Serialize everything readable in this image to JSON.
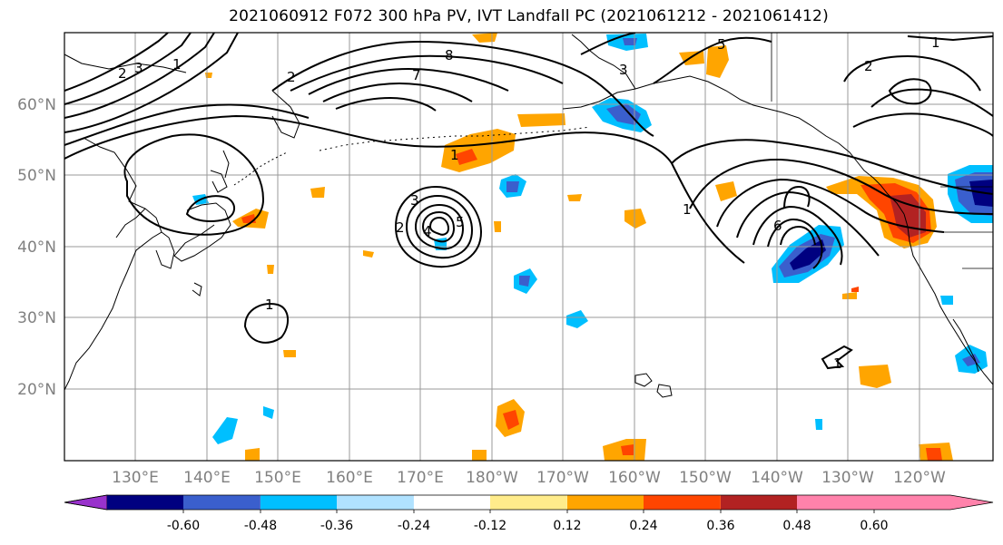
{
  "title": "2021060912 F072 300 hPa PV, IVT Landfall PC (2021061212 - 2021061412)",
  "lat_labels": [
    "60°N",
    "50°N",
    "40°N",
    "30°N",
    "20°N"
  ],
  "lon_labels": [
    "130°E",
    "140°E",
    "150°E",
    "160°E",
    "170°E",
    "180°W",
    "170°W",
    "160°W",
    "150°W",
    "140°W",
    "130°W",
    "120°W"
  ],
  "contour_labels": [
    "1",
    "1",
    "1",
    "1",
    "2",
    "2",
    "2",
    "3",
    "3",
    "4",
    "5",
    "6",
    "7",
    "8",
    "1",
    "2",
    "3",
    "5",
    "1"
  ],
  "colorbar": {
    "ticks": [
      "-0.60",
      "-0.48",
      "-0.36",
      "-0.24",
      "-0.12",
      "0.12",
      "0.24",
      "0.36",
      "0.48",
      "0.60"
    ],
    "colors": [
      "#9932CC",
      "#000080",
      "#3A5FCD",
      "#00BFFF",
      "#B0E2FF",
      "#FFFFFF",
      "#FFEC8B",
      "#FFA500",
      "#FF4500",
      "#B22222",
      "#FF82AB"
    ]
  },
  "shading_colors": {
    "light_blue": "#B0E2FF",
    "cyan": "#00BFFF",
    "blue": "#3A5FCD",
    "navy": "#000080",
    "yellow": "#FFEC8B",
    "orange": "#FFA500",
    "red_orange": "#FF4500",
    "dark_red": "#B22222"
  }
}
